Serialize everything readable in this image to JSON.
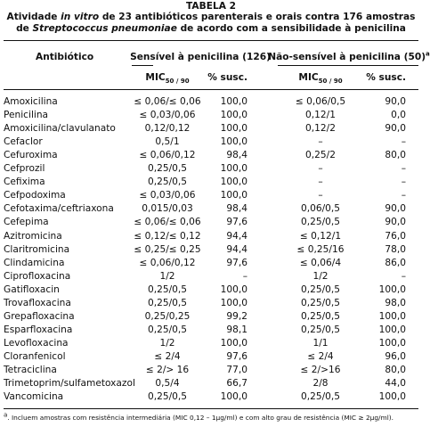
{
  "caption": {
    "label": "TABELA 2",
    "line1": [
      "Atividade ",
      "in vitro",
      " de 23 antibióticos parenterais e orais contra 176 amostras"
    ],
    "line2": [
      "de ",
      "Streptococcus pneumoniae",
      " de acordo com a sensibilidade à penicilina"
    ]
  },
  "table": {
    "header": {
      "antibiotic": "Antibiótico",
      "group1": "Sensível à penicilina (126)",
      "group2": "Não-sensível à penicilina (50)",
      "group2_note": "a",
      "mic": "MIC",
      "mic_sub": "50 / 90",
      "susc": "% susc."
    },
    "rows": [
      [
        "Amoxicilina",
        "≤ 0,06/≤ 0,06",
        "100,0",
        "≤ 0,06/0,5",
        "90,0"
      ],
      [
        "Penicilina",
        "≤ 0,03/0,06",
        "100,0",
        "0,12/1",
        "0,0"
      ],
      [
        "Amoxicilina/clavulanato",
        "0,12/0,12",
        "100,0",
        "0,12/2",
        "90,0"
      ],
      [
        "Cefaclor",
        "0,5/1",
        "100,0",
        "–",
        "–"
      ],
      [
        "Cefuroxima",
        "≤ 0,06/0,12",
        "98,4",
        "0,25/2",
        "80,0"
      ],
      [
        "Cefprozil",
        "0,25/0,5",
        "100,0",
        "–",
        "–"
      ],
      [
        "Cefixima",
        "0,25/0,5",
        "100,0",
        "–",
        "–"
      ],
      [
        "Cefpodoxima",
        "≤ 0,03/0,06",
        "100,0",
        "–",
        "–"
      ],
      [
        "Cefotaxima/ceftriaxona",
        "0,015/0,03",
        "98,4",
        "0,06/0,5",
        "90,0"
      ],
      [
        "Cefepima",
        "≤ 0,06/≤ 0,06",
        "97,6",
        "0,25/0,5",
        "90,0"
      ],
      [
        "Azitromicina",
        "≤ 0,12/≤ 0,12",
        "94,4",
        "≤ 0,12/1",
        "76,0"
      ],
      [
        "Claritromicina",
        "≤ 0,25/≤ 0,25",
        "94,4",
        "≤ 0,25/16",
        "78,0"
      ],
      [
        "Clindamicina",
        "≤ 0,06/0,12",
        "97,6",
        "≤ 0,06/4",
        "86,0"
      ],
      [
        "Ciprofloxacina",
        "1/2",
        "–",
        "1/2",
        "–"
      ],
      [
        "Gatifloxacin",
        "0,25/0,5",
        "100,0",
        "0,25/0,5",
        "100,0"
      ],
      [
        "Trovafloxacina",
        "0,25/0,5",
        "100,0",
        "0,25/0,5",
        "98,0"
      ],
      [
        "Grepafloxacina",
        "0,25/0,25",
        "99,2",
        "0,25/0,5",
        "100,0"
      ],
      [
        "Esparfloxacina",
        "0,25/0,5",
        "98,1",
        "0,25/0,5",
        "100,0"
      ],
      [
        "Levofloxacina",
        "1/2",
        "100,0",
        "1/1",
        "100,0"
      ],
      [
        "Cloranfenicol",
        "≤ 2/4",
        "97,6",
        "≤ 2/4",
        "96,0"
      ],
      [
        "Tetraciclina",
        "≤ 2/> 16",
        "77,0",
        "≤ 2/>16",
        "80,0"
      ],
      [
        "Trimetoprim/sulfametoxazol",
        "0,5/4",
        "66,7",
        "2/8",
        "44,0"
      ],
      [
        "Vancomicina",
        "0,25/0,5",
        "100,0",
        "0,25/0,5",
        "100,0"
      ]
    ]
  },
  "footnote": {
    "mark": "a",
    "text": ". Incluem amostras com resistência intermediária (MIC 0,12 – 1μg/ml) e com alto grau de resistência (MIC ≥ 2μg/ml)."
  }
}
